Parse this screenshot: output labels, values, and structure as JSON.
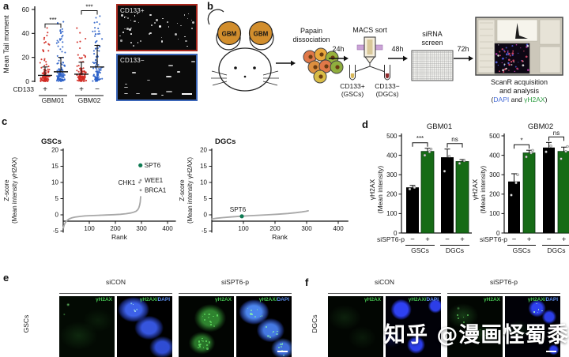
{
  "figure": {
    "panel_labels": {
      "a": "a",
      "b": "b",
      "c": "c",
      "d": "d",
      "e": "e",
      "f": "f"
    },
    "watermark": "知乎 @漫画怪蜀黍"
  },
  "panel_a": {
    "images": [
      {
        "label": "CD133+",
        "border_color": "#a8281e"
      },
      {
        "label": "CD133−",
        "border_color": "#3b66b8"
      }
    ]
  },
  "panel_b": {
    "gbm": "GBM",
    "steps": {
      "papain": [
        "Papain",
        "dissociation"
      ],
      "t24": "24h",
      "macs": "MACS sort",
      "outputs": [
        [
          "CD133+",
          "(GSCs)"
        ],
        [
          "CD133−",
          "(DGCs)"
        ]
      ],
      "t48": "48h",
      "sirna": [
        "siRNA",
        "screen"
      ],
      "t72": "72h",
      "scanr": [
        "ScanR acquisition",
        "and analysis"
      ],
      "scanr_markers": {
        "open": "(",
        "dapi": "DAPI",
        "and": " and ",
        "gh2ax": "γH2AX",
        "close": ")"
      },
      "colors": {
        "dapi": "#4a6fd8",
        "gh2ax": "#2f9e44"
      }
    }
  },
  "panel_e": {
    "row": "GSCs",
    "cols": [
      "siCON",
      "siSPT6-p"
    ],
    "overlay": {
      "green": "γH2AX",
      "merge_green": "γH2AX/",
      "merge_blue": "DAPI"
    }
  },
  "panel_f": {
    "row": "DGCs",
    "cols": [
      "siCON",
      "siSPT6-p"
    ],
    "overlay": {
      "green": "γH2AX",
      "merge_green": "γH2AX/",
      "merge_blue": "DAPI"
    }
  },
  "chart_data": [
    {
      "id": "a_tail_moment",
      "type": "scatter",
      "ylabel": "Mean Tail moment",
      "ylim": [
        0,
        60
      ],
      "yticks": [
        0,
        20,
        40,
        60
      ],
      "x_axis_label": "CD133",
      "group_row": [
        "GBM01",
        "GBM02"
      ],
      "groups": [
        {
          "group": "GBM01",
          "cd133": "+",
          "color": "#d02820",
          "mean": 5,
          "whisker": 12,
          "max": 45
        },
        {
          "group": "GBM01",
          "cd133": "−",
          "color": "#2a5fc8",
          "mean": 8,
          "whisker": 20,
          "max": 52
        },
        {
          "group": "GBM02",
          "cd133": "+",
          "color": "#d02820",
          "mean": 6,
          "whisker": 16,
          "max": 45
        },
        {
          "group": "GBM02",
          "cd133": "−",
          "color": "#2a5fc8",
          "mean": 12,
          "whisker": 30,
          "max": 55
        }
      ],
      "significance": [
        {
          "between": [
            0,
            1
          ],
          "label": "***",
          "height": 48
        },
        {
          "between": [
            2,
            3
          ],
          "label": "***",
          "height": 59
        }
      ]
    },
    {
      "id": "c_gscs",
      "type": "line",
      "title": "GSCs",
      "xlabel": "Rank",
      "ylabel_lines": [
        "Z-score",
        "(Mean intensity γH2AX)"
      ],
      "xlim": [
        0,
        430
      ],
      "ylim": [
        -5,
        20
      ],
      "xticks": [
        100,
        200,
        300,
        400
      ],
      "yticks": [
        -5,
        0,
        5,
        10,
        15,
        20
      ],
      "curve": [
        [
          1,
          -4
        ],
        [
          3,
          -3.3
        ],
        [
          6,
          -2.7
        ],
        [
          10,
          -2.2
        ],
        [
          15,
          -1.7
        ],
        [
          22,
          -1.3
        ],
        [
          32,
          -0.95
        ],
        [
          45,
          -0.7
        ],
        [
          62,
          -0.5
        ],
        [
          82,
          -0.35
        ],
        [
          105,
          -0.25
        ],
        [
          135,
          -0.15
        ],
        [
          165,
          -0.05
        ],
        [
          195,
          0.05
        ],
        [
          220,
          0.18
        ],
        [
          240,
          0.35
        ],
        [
          258,
          0.55
        ],
        [
          270,
          0.8
        ],
        [
          279,
          1.1
        ],
        [
          286,
          1.6
        ],
        [
          290,
          2.2
        ],
        [
          293,
          3
        ],
        [
          295,
          3.9
        ],
        [
          296,
          4.8
        ],
        [
          297,
          5.6
        ]
      ],
      "hits": [
        {
          "name": "SPT6",
          "rank": 296,
          "z": 15.3,
          "color": "#0e7a52",
          "label_pos": "right",
          "highlight": true
        },
        {
          "name": "WEE1",
          "rank": 297,
          "z": 10.7,
          "label_pos": "right"
        },
        {
          "name": "CHK1",
          "rank": 292,
          "z": 10.0,
          "label_pos": "left"
        },
        {
          "name": "BRCA1",
          "rank": 297,
          "z": 7.6,
          "label_pos": "right"
        }
      ]
    },
    {
      "id": "c_dgcs",
      "type": "line",
      "title": "DGCs",
      "xlabel": "Rank",
      "ylabel_lines": [
        "Z-score",
        "(Mean intensity γH2AX)"
      ],
      "xlim": [
        0,
        430
      ],
      "ylim": [
        -5,
        20
      ],
      "xticks": [
        100,
        200,
        300,
        400
      ],
      "yticks": [
        -5,
        0,
        5,
        10,
        15,
        20
      ],
      "curve": [
        [
          1,
          -1.3
        ],
        [
          15,
          -1.05
        ],
        [
          35,
          -0.85
        ],
        [
          60,
          -0.65
        ],
        [
          90,
          -0.45
        ],
        [
          120,
          -0.28
        ],
        [
          150,
          -0.12
        ],
        [
          180,
          0.03
        ],
        [
          210,
          0.2
        ],
        [
          240,
          0.42
        ],
        [
          265,
          0.65
        ],
        [
          285,
          0.9
        ],
        [
          298,
          1.1
        ],
        [
          305,
          1.25
        ]
      ],
      "hits": [
        {
          "name": "SPT6",
          "rank": 95,
          "z": -0.45,
          "color": "#0e7a52",
          "label_pos": "above",
          "highlight": true
        }
      ]
    },
    {
      "id": "d_gbm01",
      "type": "bar",
      "title": "GBM01",
      "ylabel_lines": [
        "γH2AX",
        "(Mean intensity)"
      ],
      "ylim": [
        0,
        500
      ],
      "yticks": [
        0,
        100,
        200,
        300,
        400,
        500
      ],
      "x_axis_label": "siSPT6-p",
      "signs": [
        "−",
        "+",
        "−",
        "+"
      ],
      "group_labels": [
        "GSCs",
        "DGCs"
      ],
      "bars": [
        {
          "value": 235,
          "error": 10,
          "color": "#000000",
          "points": [
            226,
            234
          ]
        },
        {
          "value": 420,
          "error": 16,
          "color": "#166b16",
          "points": [
            400,
            418,
            432
          ]
        },
        {
          "value": 390,
          "error": 42,
          "color": "#000000",
          "points": [
            318,
            395
          ]
        },
        {
          "value": 368,
          "error": 10,
          "color": "#166b16",
          "points": [
            358,
            372
          ]
        }
      ],
      "significance": [
        {
          "between": [
            0,
            1
          ],
          "label": "***"
        },
        {
          "between": [
            2,
            3
          ],
          "label": "ns"
        }
      ]
    },
    {
      "id": "d_gbm02",
      "type": "bar",
      "title": "GBM02",
      "ylabel_lines": [
        "γH2AX",
        "(Mean intensity)"
      ],
      "ylim": [
        0,
        500
      ],
      "yticks": [
        0,
        100,
        200,
        300,
        400,
        500
      ],
      "x_axis_label": "siSPT6-p",
      "signs": [
        "−",
        "+",
        "−",
        "+"
      ],
      "group_labels": [
        "GSCs",
        "DGCs"
      ],
      "bars": [
        {
          "value": 265,
          "error": 40,
          "color": "#000000",
          "points": [
            195,
            258,
            300
          ]
        },
        {
          "value": 412,
          "error": 14,
          "color": "#166b16",
          "points": [
            392,
            412,
            425
          ]
        },
        {
          "value": 440,
          "error": 26,
          "color": "#000000",
          "points": [
            418,
            448
          ]
        },
        {
          "value": 420,
          "error": 22,
          "color": "#166b16",
          "points": [
            382,
            420,
            445
          ]
        }
      ],
      "significance": [
        {
          "between": [
            0,
            1
          ],
          "label": "*"
        },
        {
          "between": [
            2,
            3
          ],
          "label": "ns"
        }
      ]
    }
  ]
}
